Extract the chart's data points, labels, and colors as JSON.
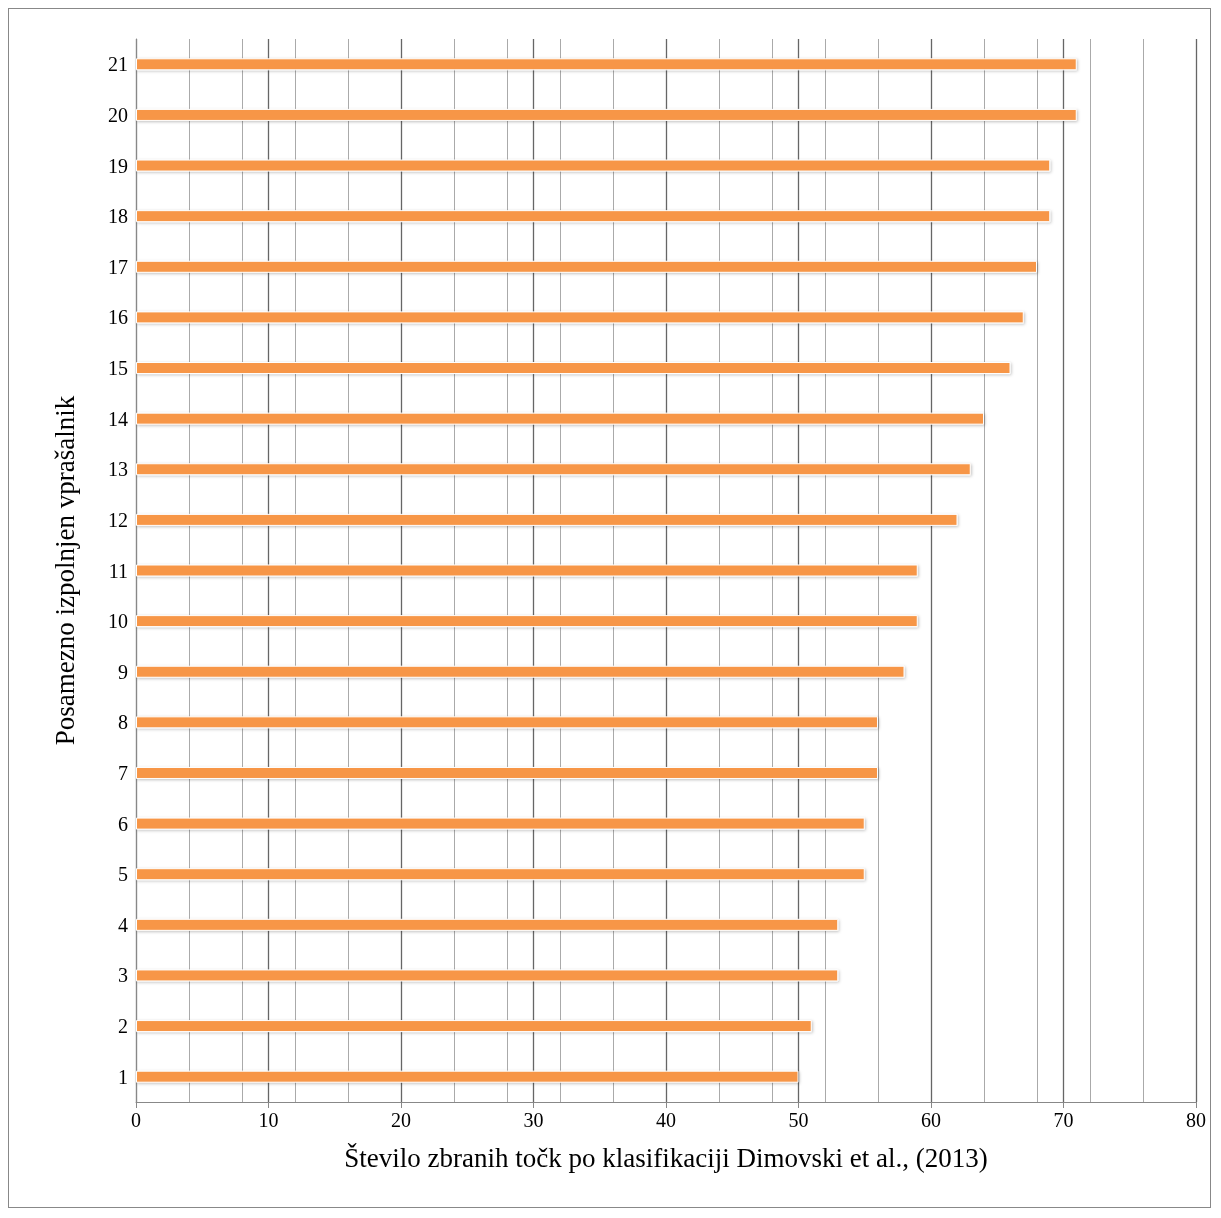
{
  "chart_data": {
    "type": "bar",
    "orientation": "horizontal",
    "xlabel": "Število zbranih točk po klasifikaciji Dimovski et al., (2013)",
    "ylabel": "Posamezno izpolnjen vprašalnik",
    "categories": [
      "21",
      "20",
      "19",
      "18",
      "17",
      "16",
      "15",
      "14",
      "13",
      "12",
      "11",
      "10",
      "9",
      "8",
      "7",
      "6",
      "5",
      "4",
      "3",
      "2",
      "1"
    ],
    "values": [
      71,
      71,
      69,
      69,
      68,
      67,
      66,
      64,
      63,
      62,
      59,
      59,
      58,
      56,
      56,
      55,
      55,
      53,
      53,
      51,
      50
    ],
    "color": "#f79646",
    "xlim": [
      0,
      80
    ],
    "xticks": [
      0,
      10,
      20,
      30,
      40,
      50,
      60,
      70,
      80
    ],
    "grid": "x"
  }
}
